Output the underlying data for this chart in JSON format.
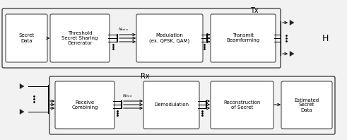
{
  "bg_color": "#f0f0f0",
  "tx_label": "Tx",
  "rx_label": "Rx",
  "h_label": "H",
  "font_size_block": 5.0,
  "font_size_label": 7.0,
  "font_size_nmin": 4.5
}
